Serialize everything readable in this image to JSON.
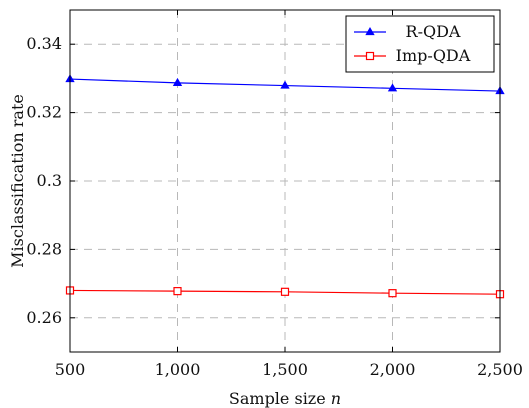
{
  "chart_data": {
    "type": "line",
    "xlabel_prefix": "Sample size ",
    "xlabel_var": "n",
    "ylabel": "Misclassification rate",
    "xlim": [
      500,
      2500
    ],
    "ylim": [
      0.25,
      0.35
    ],
    "x": [
      500,
      1000,
      1500,
      2000,
      2500
    ],
    "xticks": [
      500,
      1000,
      1500,
      2000,
      2500
    ],
    "xtick_labels": [
      "500",
      "1,000",
      "1,500",
      "2,000",
      "2,500"
    ],
    "yticks": [
      0.26,
      0.28,
      0.3,
      0.32,
      0.34
    ],
    "ytick_labels": [
      "0.26",
      "0.28",
      "0.3",
      "0.32",
      "0.34"
    ],
    "grid": true,
    "legend_placement": "top-right",
    "series": [
      {
        "name": "R-QDA",
        "color": "#0000ff",
        "marker": "triangle",
        "values": [
          0.3298,
          0.3287,
          0.3279,
          0.3271,
          0.3263
        ]
      },
      {
        "name": "Imp-QDA",
        "color": "#ff0000",
        "marker": "square",
        "values": [
          0.268,
          0.2678,
          0.2676,
          0.2672,
          0.2669
        ]
      }
    ]
  }
}
